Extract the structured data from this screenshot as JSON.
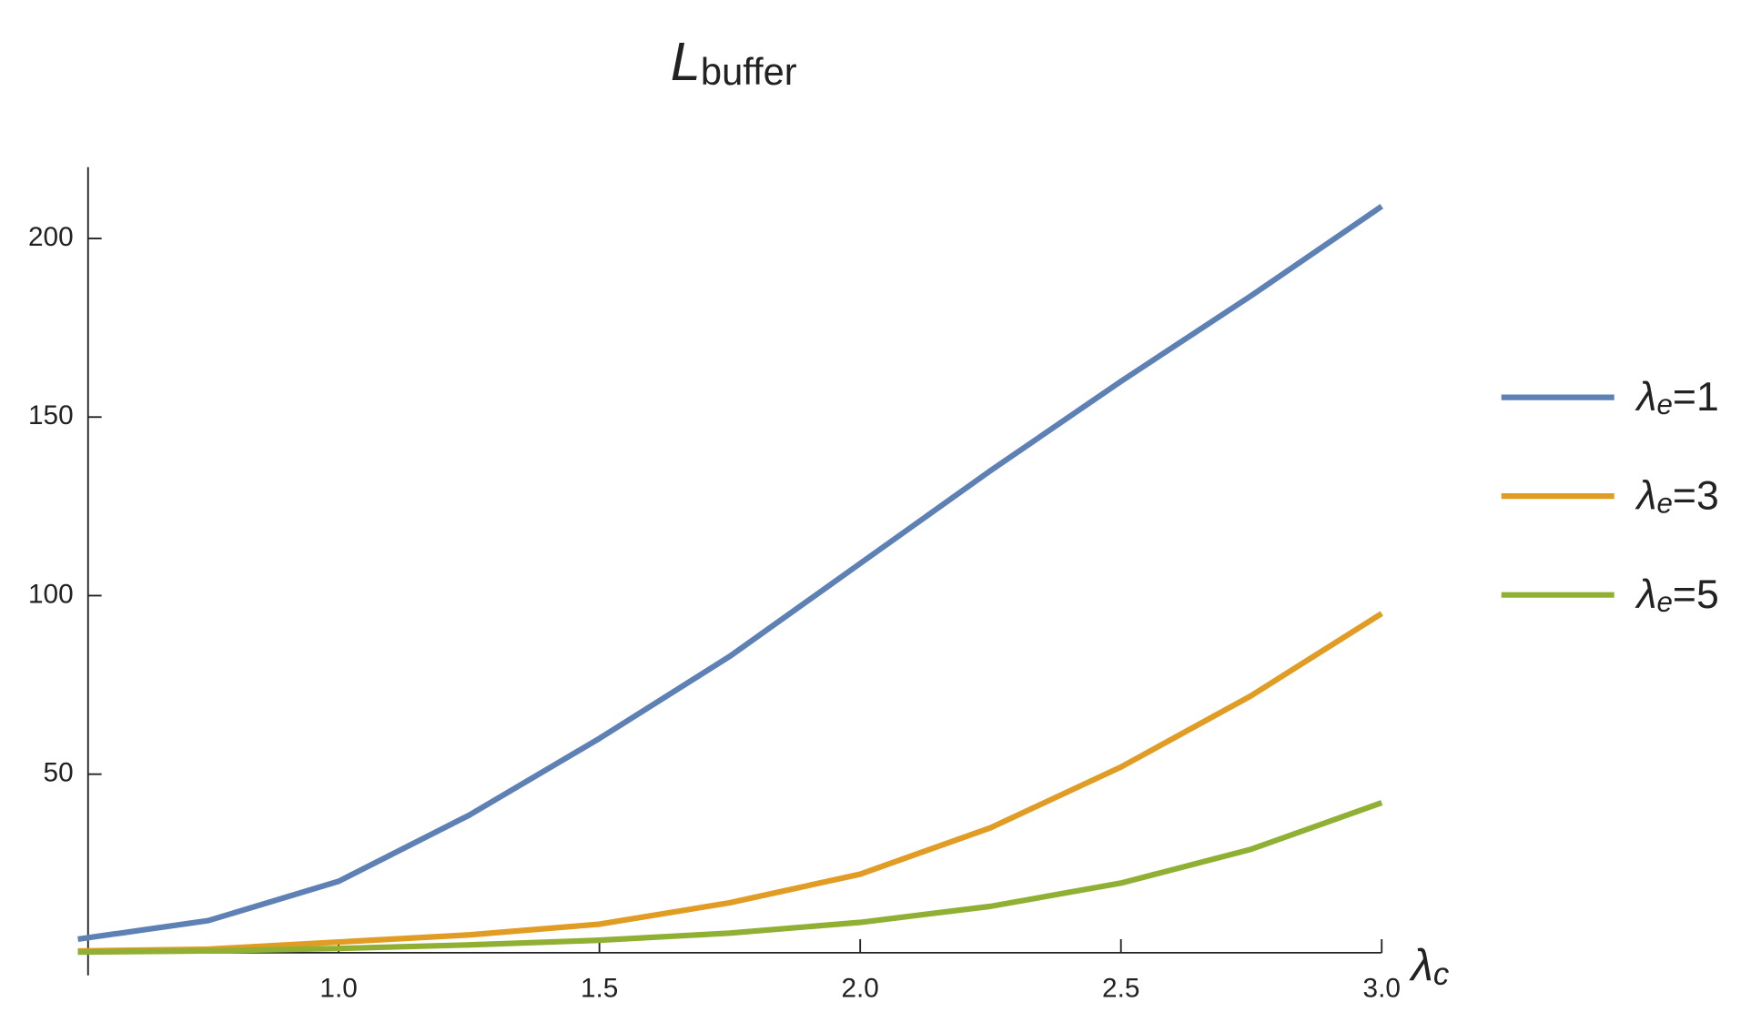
{
  "chart_data": {
    "type": "line",
    "title": "Lbuffer",
    "x_label": "λc",
    "x": [
      0.5,
      0.75,
      1.0,
      1.25,
      1.5,
      1.75,
      2.0,
      2.25,
      2.5,
      2.75,
      3.0
    ],
    "series": [
      {
        "name": "λe=1",
        "color": "#5e81b5",
        "values": [
          3.8,
          9,
          20,
          38.5,
          60,
          83,
          109,
          135,
          160,
          184,
          209
        ]
      },
      {
        "name": "λe=3",
        "color": "#e19c24",
        "values": [
          0.5,
          1,
          3,
          5,
          8,
          14,
          22,
          35,
          52,
          72,
          95
        ]
      },
      {
        "name": "λe=5",
        "color": "#8fb032",
        "values": [
          0.2,
          0.5,
          1.2,
          2.2,
          3.5,
          5.5,
          8.5,
          13,
          19.5,
          29,
          42
        ]
      }
    ],
    "xlim": [
      0.5,
      3.0
    ],
    "ylim": [
      0,
      220
    ],
    "xticks": [
      {
        "value": 1,
        "label": "1.0"
      },
      1.5,
      {
        "value": 2,
        "label": "2.0"
      },
      2.5,
      {
        "value": 3,
        "label": "3.0"
      }
    ],
    "yticks": [
      50,
      100,
      150,
      200
    ],
    "legend": "right",
    "grid": false
  }
}
